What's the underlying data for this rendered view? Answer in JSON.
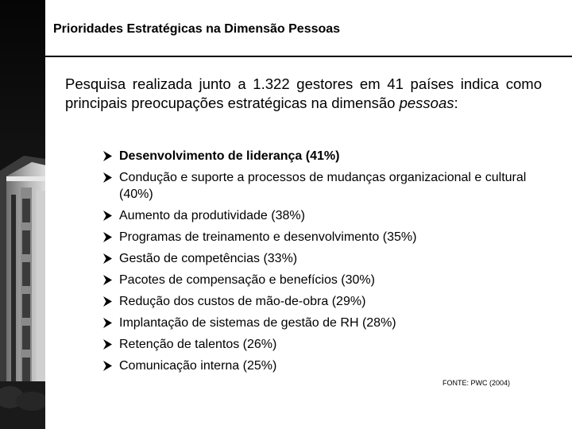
{
  "slide": {
    "title": "Prioridades Estratégicas na Dimensão Pessoas",
    "intro_text": "Pesquisa realizada junto a 1.322 gestores em 41 países indica como principais preocupações estratégicas na dimensão ",
    "intro_emphasis": "pessoas",
    "intro_end": ":",
    "bullet_icon": "arrowhead-bullet-icon",
    "priorities": [
      "Desenvolvimento de liderança (41%)",
      "Condução e suporte a processos de mudanças organizacional e cultural (40%)",
      "Aumento da produtividade (38%)",
      "Programas de treinamento e desenvolvimento (35%)",
      "Gestão de competências (33%)",
      "Pacotes de compensação e benefícios (30%)",
      "Redução dos custos de mão-de-obra (29%)",
      "Implantação de sistemas de gestão de RH (28%)",
      "Retenção de talentos (26%)",
      "Comunicação interna (25%)"
    ],
    "source": "FONTE: PWC (2004)"
  }
}
